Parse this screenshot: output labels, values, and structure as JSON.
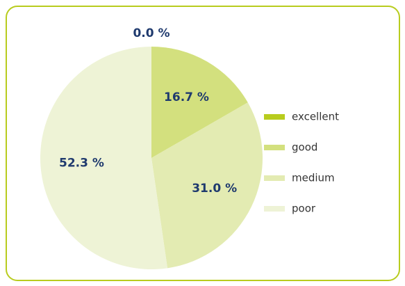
{
  "chart_data": {
    "type": "pie",
    "categories": [
      "excellent",
      "good",
      "medium",
      "poor"
    ],
    "values": [
      0.0,
      16.7,
      31.0,
      52.3
    ],
    "value_labels": [
      "0.0 %",
      "16.7 %",
      "31.0 %",
      "52.3 %"
    ],
    "colors": [
      "#b8cc1e",
      "#d3e07e",
      "#e3ebb2",
      "#eef3d6"
    ],
    "legend": "right"
  }
}
